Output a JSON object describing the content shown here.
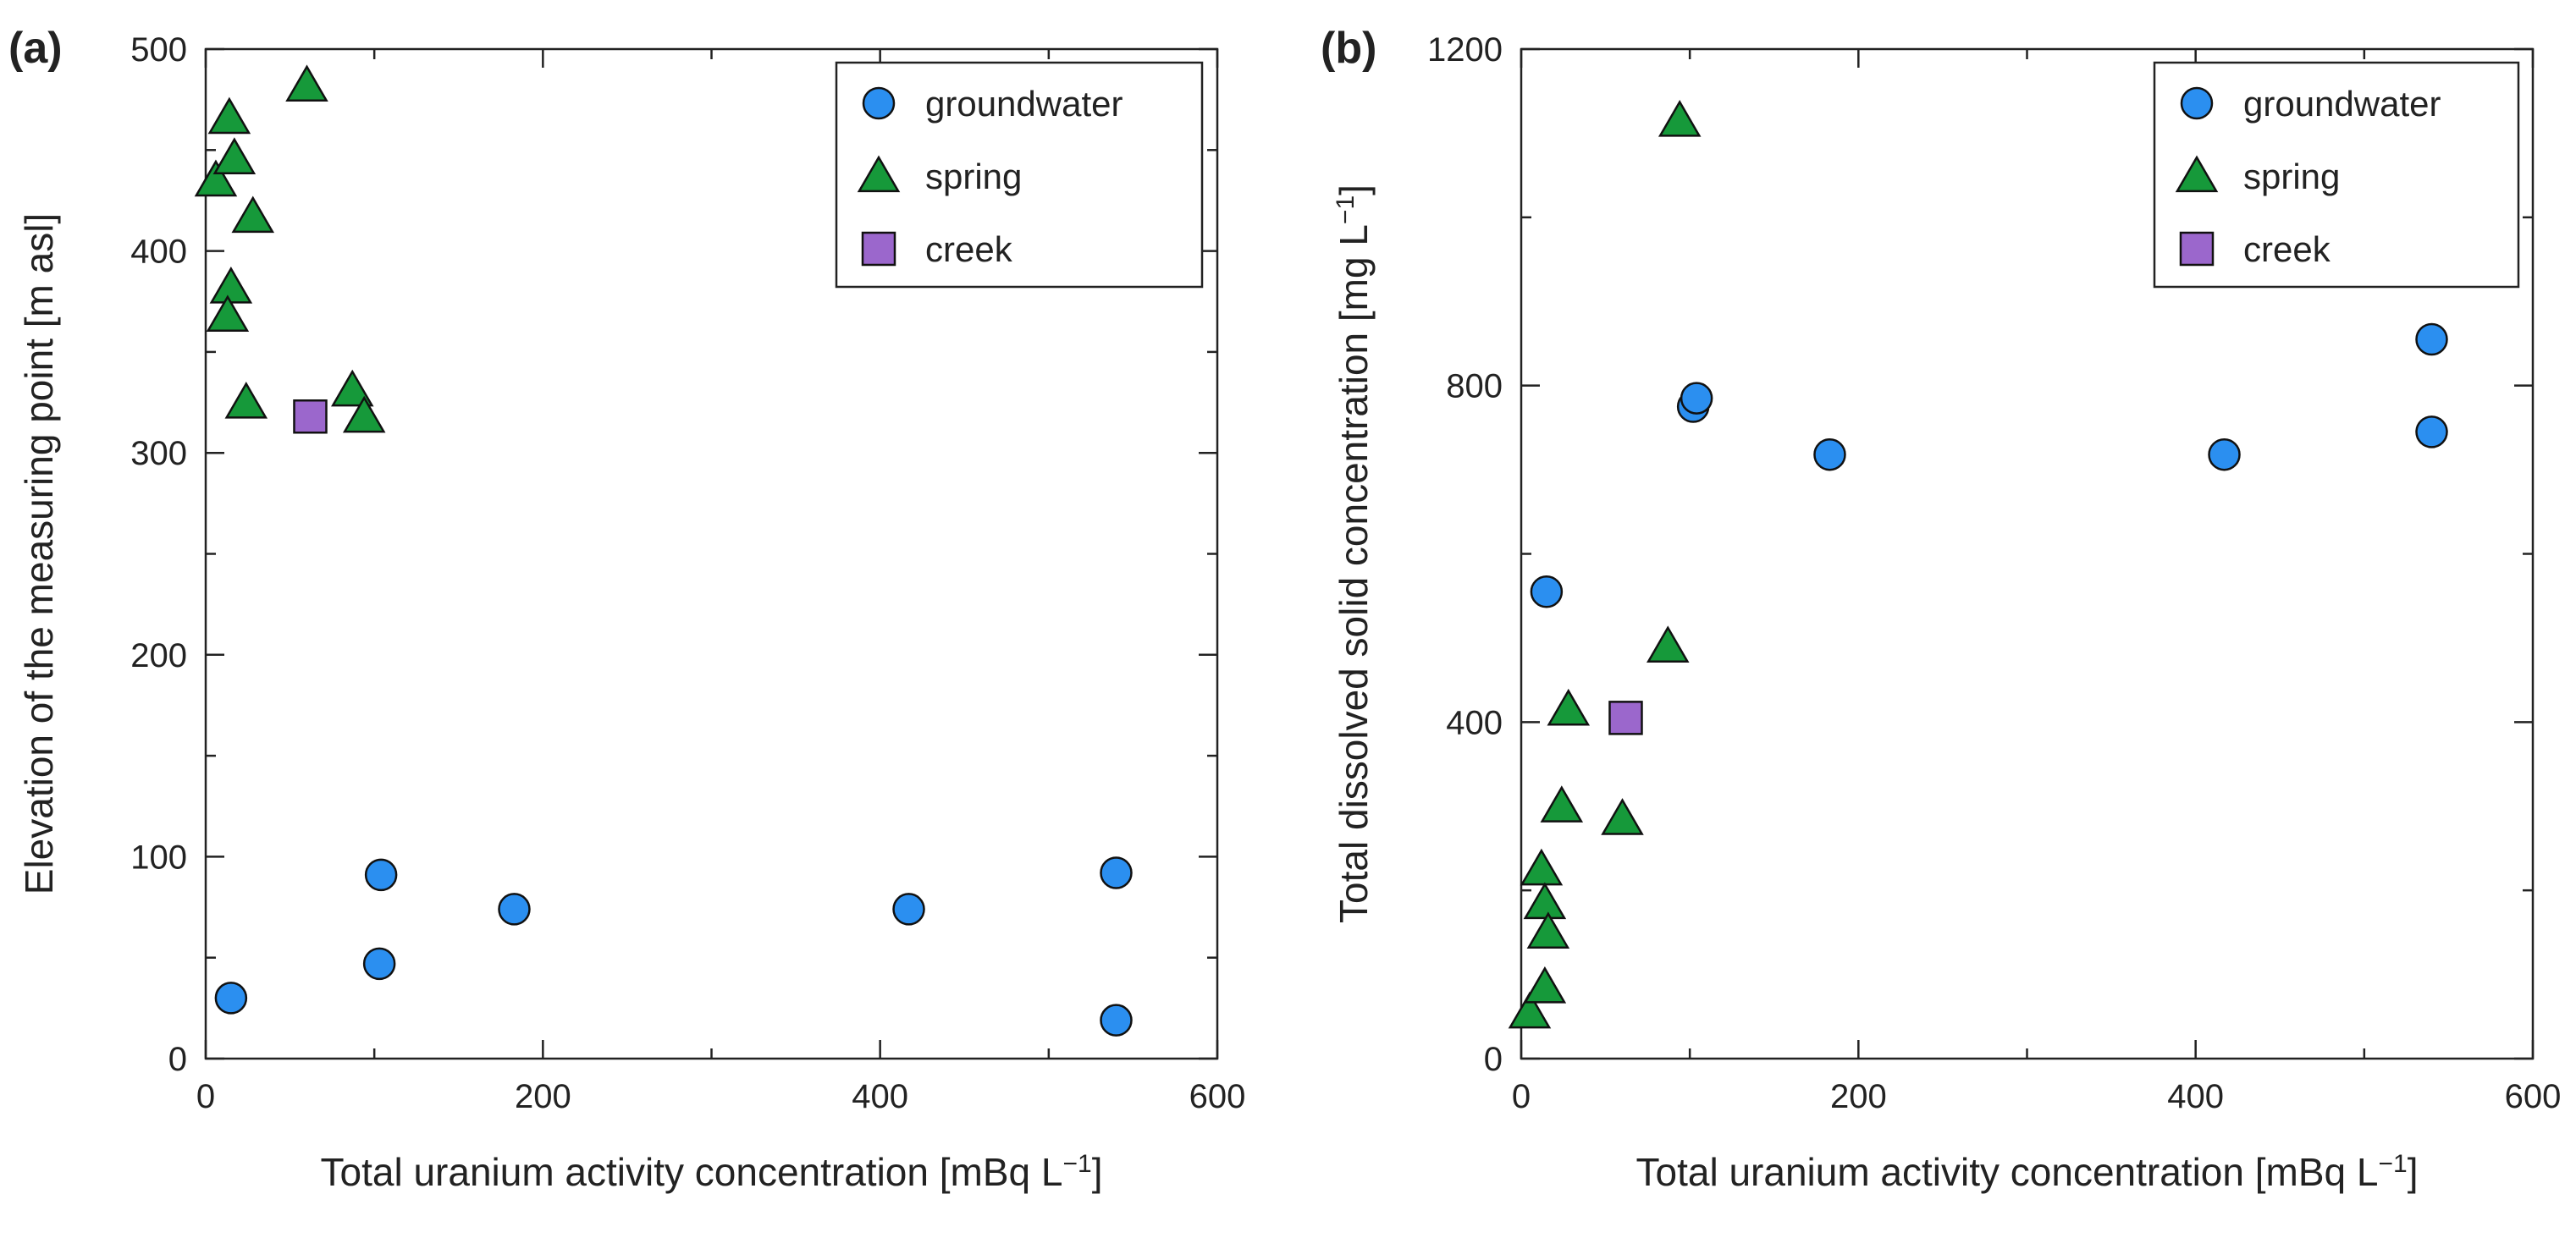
{
  "chart_data": [
    {
      "type": "scatter",
      "panel_label": "(a)",
      "xlabel": "Total uranium activity concentration [mBq L",
      "xlabel_sup": "−1",
      "xlabel_end": "]",
      "ylabel": "Elevation of the measuring point [m asl]",
      "ylabel_sup": "",
      "ylabel_end": "",
      "xlim": [
        0,
        600
      ],
      "ylim": [
        0,
        500
      ],
      "xticks": [
        0,
        200,
        400,
        600
      ],
      "yticks": [
        0,
        100,
        200,
        300,
        400,
        500
      ],
      "xticks_minor": [
        100,
        300,
        500
      ],
      "yticks_minor": [
        50,
        150,
        250,
        350,
        450
      ],
      "legend": "top-right",
      "series": [
        {
          "name": "groundwater",
          "marker": "circle",
          "color": "#2b8ff0",
          "x": [
            15,
            103,
            104,
            183,
            417,
            540,
            540
          ],
          "y": [
            30,
            47,
            91,
            74,
            74,
            92,
            19
          ]
        },
        {
          "name": "spring",
          "marker": "triangle",
          "color": "#16993a",
          "x": [
            6,
            14,
            17,
            15,
            13,
            24,
            28,
            60,
            87,
            94
          ],
          "y": [
            435,
            466,
            446,
            382,
            368,
            325,
            417,
            482,
            331,
            318
          ]
        },
        {
          "name": "creek",
          "marker": "square",
          "color": "#9b67cc",
          "x": [
            62
          ],
          "y": [
            318
          ]
        }
      ]
    },
    {
      "type": "scatter",
      "panel_label": "(b)",
      "xlabel": "Total uranium activity concentration [mBq L",
      "xlabel_sup": "−1",
      "xlabel_end": "]",
      "ylabel": "Total dissolved solid concentration [mg L",
      "ylabel_sup": "−1",
      "ylabel_end": "]",
      "xlim": [
        0,
        600
      ],
      "ylim": [
        0,
        1200
      ],
      "xticks": [
        0,
        200,
        400,
        600
      ],
      "yticks": [
        0,
        400,
        800,
        1200
      ],
      "xticks_minor": [
        100,
        300,
        500
      ],
      "yticks_minor": [
        200,
        600,
        1000
      ],
      "legend": "top-right",
      "series": [
        {
          "name": "groundwater",
          "marker": "circle",
          "color": "#2b8ff0",
          "x": [
            15,
            102,
            104,
            183,
            417,
            540,
            540
          ],
          "y": [
            555,
            775,
            785,
            718,
            718,
            745,
            855
          ]
        },
        {
          "name": "spring",
          "marker": "triangle",
          "color": "#16993a",
          "x": [
            5,
            12,
            14,
            16,
            14,
            24,
            28,
            60,
            87,
            94
          ],
          "y": [
            55,
            225,
            185,
            150,
            85,
            300,
            415,
            285,
            490,
            1115
          ]
        },
        {
          "name": "creek",
          "marker": "square",
          "color": "#9b67cc",
          "x": [
            62
          ],
          "y": [
            405
          ]
        }
      ]
    }
  ]
}
